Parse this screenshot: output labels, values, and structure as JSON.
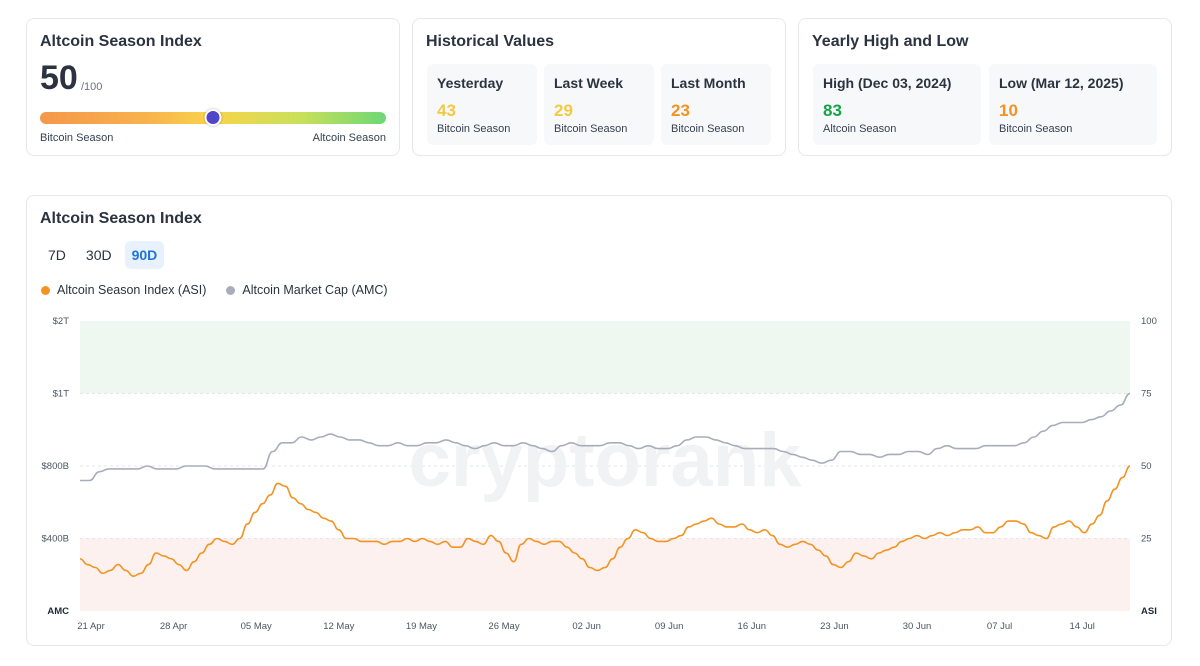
{
  "index_card": {
    "title": "Altcoin Season Index",
    "value": "50",
    "max": "/100",
    "gauge_value": 50,
    "left_label": "Bitcoin Season",
    "right_label": "Altcoin Season"
  },
  "historical": {
    "title": "Historical Values",
    "items": [
      {
        "label": "Yesterday",
        "value": "43",
        "status": "Bitcoin Season",
        "color": "#f5c842"
      },
      {
        "label": "Last Week",
        "value": "29",
        "status": "Bitcoin Season",
        "color": "#f5c842"
      },
      {
        "label": "Last Month",
        "value": "23",
        "status": "Bitcoin Season",
        "color": "#f29322"
      }
    ]
  },
  "yearly": {
    "title": "Yearly High and Low",
    "items": [
      {
        "label": "High (Dec 03, 2024)",
        "value": "83",
        "status": "Altcoin Season",
        "color": "#16a34a"
      },
      {
        "label": "Low (Mar 12, 2025)",
        "value": "10",
        "status": "Bitcoin Season",
        "color": "#f29322"
      }
    ]
  },
  "chart_section": {
    "title": "Altcoin Season Index",
    "tabs": [
      {
        "label": "7D",
        "active": false
      },
      {
        "label": "30D",
        "active": false
      },
      {
        "label": "90D",
        "active": true
      }
    ]
  },
  "chart_data": {
    "type": "line",
    "watermark": "cryptorank",
    "x_ticks": [
      "21 Apr",
      "28 Apr",
      "05 May",
      "12 May",
      "19 May",
      "26 May",
      "02 Jun",
      "09 Jun",
      "16 Jun",
      "23 Jun",
      "30 Jun",
      "07 Jul",
      "14 Jul"
    ],
    "left_axis": {
      "name": "AMC",
      "ticks": [
        "$2T",
        "$1T",
        "$800B",
        "$400B"
      ]
    },
    "right_axis": {
      "name": "ASI",
      "ticks": [
        "100",
        "75",
        "50",
        "25"
      ],
      "range": [
        0,
        100
      ]
    },
    "bands": [
      {
        "from": 75,
        "to": 100,
        "color": "#eef8f1",
        "meaning": "Altcoin Season"
      },
      {
        "from": 0,
        "to": 25,
        "color": "#fdf1ef",
        "meaning": "Bitcoin Season"
      }
    ],
    "series": [
      {
        "name": "Altcoin Season Index (ASI)",
        "color": "#f29322",
        "values": [
          18,
          16,
          15,
          13,
          14,
          16,
          14,
          12,
          13,
          16,
          20,
          19,
          18,
          16,
          14,
          17,
          20,
          23,
          25,
          24,
          23,
          25,
          30,
          34,
          37,
          40,
          44,
          43,
          39,
          37,
          35,
          34,
          32,
          31,
          28,
          25,
          25,
          24,
          24,
          24,
          23,
          24,
          24,
          25,
          24,
          25,
          24,
          23,
          24,
          22,
          22,
          25,
          24,
          23,
          26,
          24,
          20,
          17,
          23,
          25,
          24,
          23,
          24,
          24,
          22,
          20,
          18,
          15,
          14,
          15,
          18,
          22,
          25,
          28,
          27,
          25,
          24,
          24,
          25,
          26,
          29,
          30,
          31,
          32,
          30,
          29,
          29,
          30,
          28,
          27,
          28,
          26,
          23,
          22,
          23,
          24,
          23,
          21,
          19,
          16,
          15,
          17,
          20,
          19,
          18,
          20,
          21,
          22,
          24,
          25,
          26,
          25,
          26,
          27,
          26,
          27,
          28,
          28,
          29,
          27,
          27,
          29,
          31,
          31,
          30,
          27,
          26,
          25,
          29,
          30,
          31,
          29,
          27,
          30,
          33,
          38,
          42,
          46,
          50
        ]
      },
      {
        "name": "Altcoin Market Cap (AMC)",
        "color": "#a8aeb9",
        "values": [
          45,
          45,
          48,
          49,
          49,
          49,
          49,
          50,
          49,
          49,
          49,
          50,
          50,
          50,
          49,
          49,
          49,
          49,
          49,
          49,
          55,
          58,
          58,
          60,
          59,
          60,
          61,
          60,
          59,
          59,
          58,
          57,
          57,
          58,
          57,
          57,
          58,
          58,
          59,
          58,
          57,
          56,
          57,
          58,
          57,
          57,
          58,
          57,
          56,
          55,
          57,
          58,
          57,
          57,
          57,
          58,
          58,
          57,
          56,
          57,
          56,
          56,
          57,
          59,
          60,
          60,
          59,
          58,
          57,
          56,
          56,
          56,
          56,
          55,
          54,
          53,
          52,
          51,
          52,
          55,
          55,
          54,
          54,
          53,
          54,
          54,
          55,
          55,
          54,
          56,
          57,
          56,
          56,
          56,
          57,
          57,
          57,
          57,
          58,
          60,
          62,
          64,
          65,
          65,
          65,
          66,
          67,
          69,
          71,
          75
        ]
      }
    ]
  }
}
